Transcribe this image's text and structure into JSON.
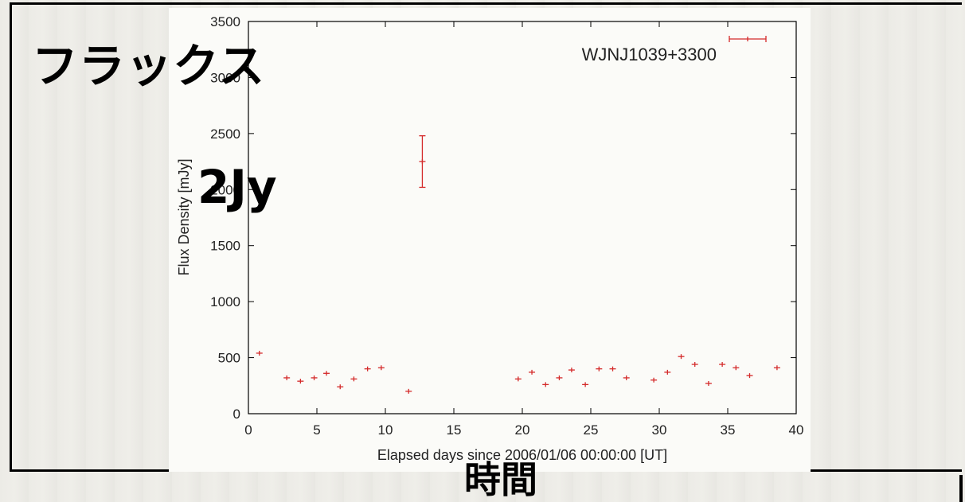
{
  "annotations": {
    "flux_label": "フラックス",
    "level_label": "2Jy",
    "time_label": "時間"
  },
  "chart_data": {
    "type": "scatter",
    "title": "",
    "xlabel": "Elapsed days since 2006/01/06 00:00:00 [UT]",
    "ylabel": "Flux Density [mJy]",
    "xlim": [
      0,
      40
    ],
    "ylim": [
      0,
      3500
    ],
    "xticks": [
      0,
      5,
      10,
      15,
      20,
      25,
      30,
      35,
      40
    ],
    "yticks": [
      0,
      500,
      1000,
      1500,
      2000,
      2500,
      3000,
      3500
    ],
    "legend_position": "top-right",
    "grid": false,
    "color": "#d42a2a",
    "series": [
      {
        "name": "WJNJ1039+3300",
        "points": [
          {
            "x": 0.8,
            "y": 540
          },
          {
            "x": 2.8,
            "y": 320
          },
          {
            "x": 3.8,
            "y": 290
          },
          {
            "x": 4.8,
            "y": 320
          },
          {
            "x": 5.7,
            "y": 360
          },
          {
            "x": 6.7,
            "y": 240
          },
          {
            "x": 7.7,
            "y": 310
          },
          {
            "x": 8.7,
            "y": 400
          },
          {
            "x": 9.7,
            "y": 410
          },
          {
            "x": 11.7,
            "y": 200
          },
          {
            "x": 12.7,
            "y": 2250,
            "err": 230
          },
          {
            "x": 19.7,
            "y": 310
          },
          {
            "x": 20.7,
            "y": 370
          },
          {
            "x": 21.7,
            "y": 260
          },
          {
            "x": 22.7,
            "y": 320
          },
          {
            "x": 23.6,
            "y": 390
          },
          {
            "x": 24.6,
            "y": 260
          },
          {
            "x": 25.6,
            "y": 400
          },
          {
            "x": 26.6,
            "y": 400
          },
          {
            "x": 27.6,
            "y": 320
          },
          {
            "x": 29.6,
            "y": 300
          },
          {
            "x": 30.6,
            "y": 370
          },
          {
            "x": 31.6,
            "y": 510
          },
          {
            "x": 32.6,
            "y": 440
          },
          {
            "x": 33.6,
            "y": 270
          },
          {
            "x": 34.6,
            "y": 440
          },
          {
            "x": 35.6,
            "y": 410
          },
          {
            "x": 36.6,
            "y": 340
          },
          {
            "x": 38.6,
            "y": 410
          }
        ]
      }
    ]
  }
}
